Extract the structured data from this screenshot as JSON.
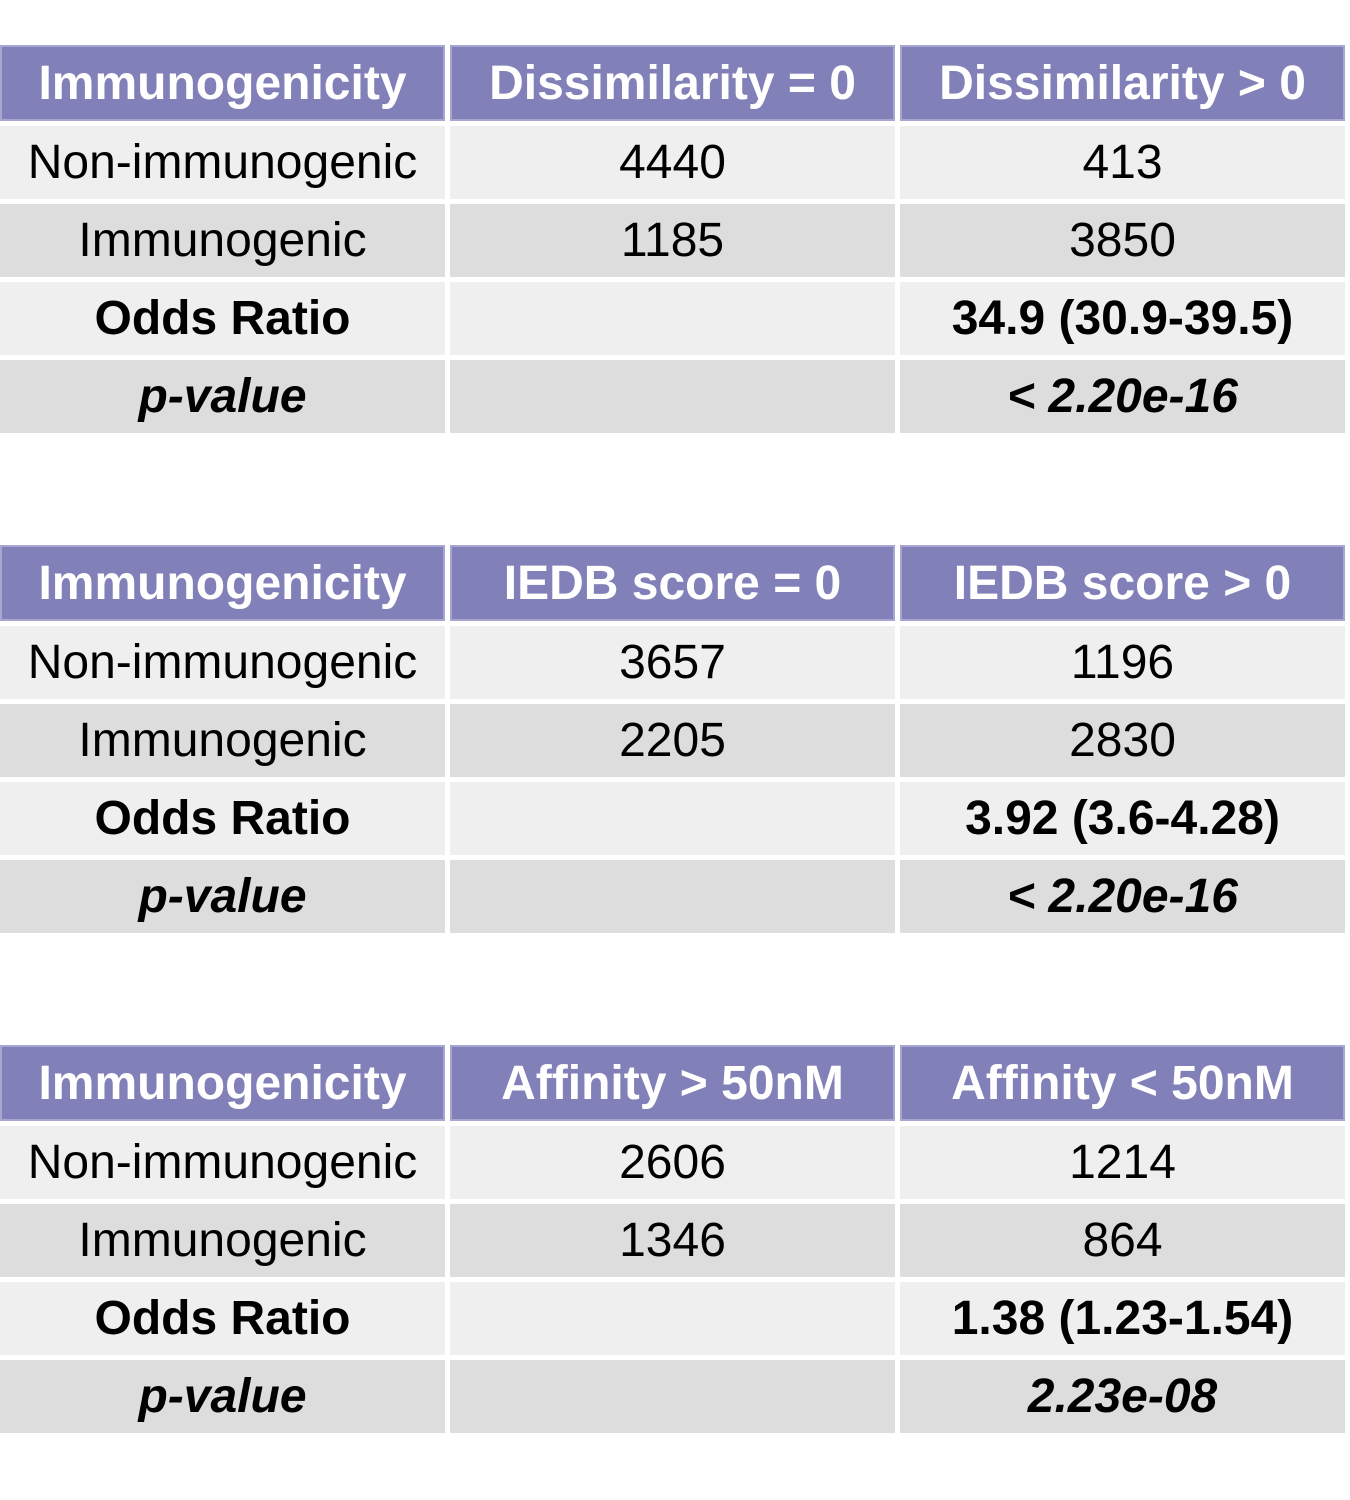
{
  "tables": [
    {
      "header": [
        "Immunogenicity",
        "Dissimilarity = 0",
        "Dissimilarity > 0"
      ],
      "rows": [
        {
          "label": "Non-immunogenic",
          "c1": "4440",
          "c2": "413"
        },
        {
          "label": "Immunogenic",
          "c1": "1185",
          "c2": "3850"
        },
        {
          "label": "Odds Ratio",
          "c1": "",
          "c2": "34.9 (30.9-39.5)"
        },
        {
          "label": "p-value",
          "c1": "",
          "c2": "< 2.20e-16"
        }
      ]
    },
    {
      "header": [
        "Immunogenicity",
        "IEDB score = 0",
        "IEDB score > 0"
      ],
      "rows": [
        {
          "label": "Non-immunogenic",
          "c1": "3657",
          "c2": "1196"
        },
        {
          "label": "Immunogenic",
          "c1": "2205",
          "c2": "2830"
        },
        {
          "label": "Odds Ratio",
          "c1": "",
          "c2": "3.92 (3.6-4.28)"
        },
        {
          "label": "p-value",
          "c1": "",
          "c2": "< 2.20e-16"
        }
      ]
    },
    {
      "header": [
        "Immunogenicity",
        "Affinity > 50nM",
        "Affinity < 50nM"
      ],
      "rows": [
        {
          "label": "Non-immunogenic",
          "c1": "2606",
          "c2": "1214"
        },
        {
          "label": "Immunogenic",
          "c1": "1346",
          "c2": "864"
        },
        {
          "label": "Odds Ratio",
          "c1": "",
          "c2": "1.38 (1.23-1.54)"
        },
        {
          "label": "p-value",
          "c1": "",
          "c2": "2.23e-08"
        }
      ]
    }
  ],
  "colors": {
    "header_bg": "#8280b8",
    "header_text": "#ffffff",
    "row_light": "#efefef",
    "row_dark": "#dddddd"
  }
}
